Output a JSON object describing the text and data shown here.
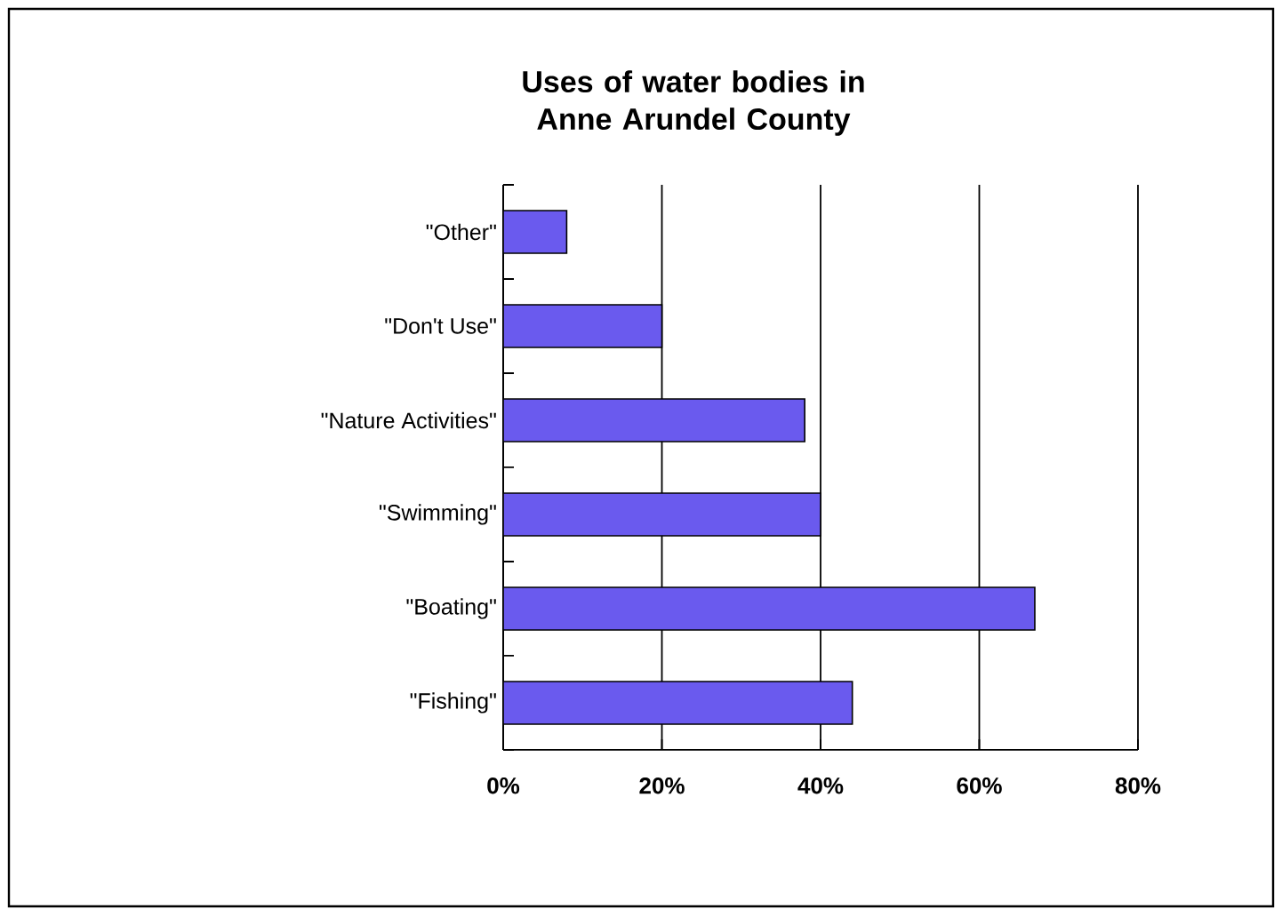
{
  "chart_data": {
    "type": "bar",
    "orientation": "horizontal",
    "title": "Uses of water bodies in Anne Arundel County",
    "categories": [
      "\"Other\"",
      "\"Don't Use\"",
      "\"Nature Activities\"",
      "\"Swimming\"",
      "\"Boating\"",
      "\"Fishing\""
    ],
    "values": [
      8,
      20,
      38,
      40,
      67,
      44
    ],
    "color": "#6a5aee",
    "xlim": [
      0,
      80
    ],
    "xticks": [
      {
        "value": 0,
        "label": "0%"
      },
      {
        "value": 20,
        "label": "20%"
      },
      {
        "value": 40,
        "label": "40%"
      },
      {
        "value": 60,
        "label": "60%"
      },
      {
        "value": 80,
        "label": "80%"
      }
    ],
    "grid": "x"
  }
}
